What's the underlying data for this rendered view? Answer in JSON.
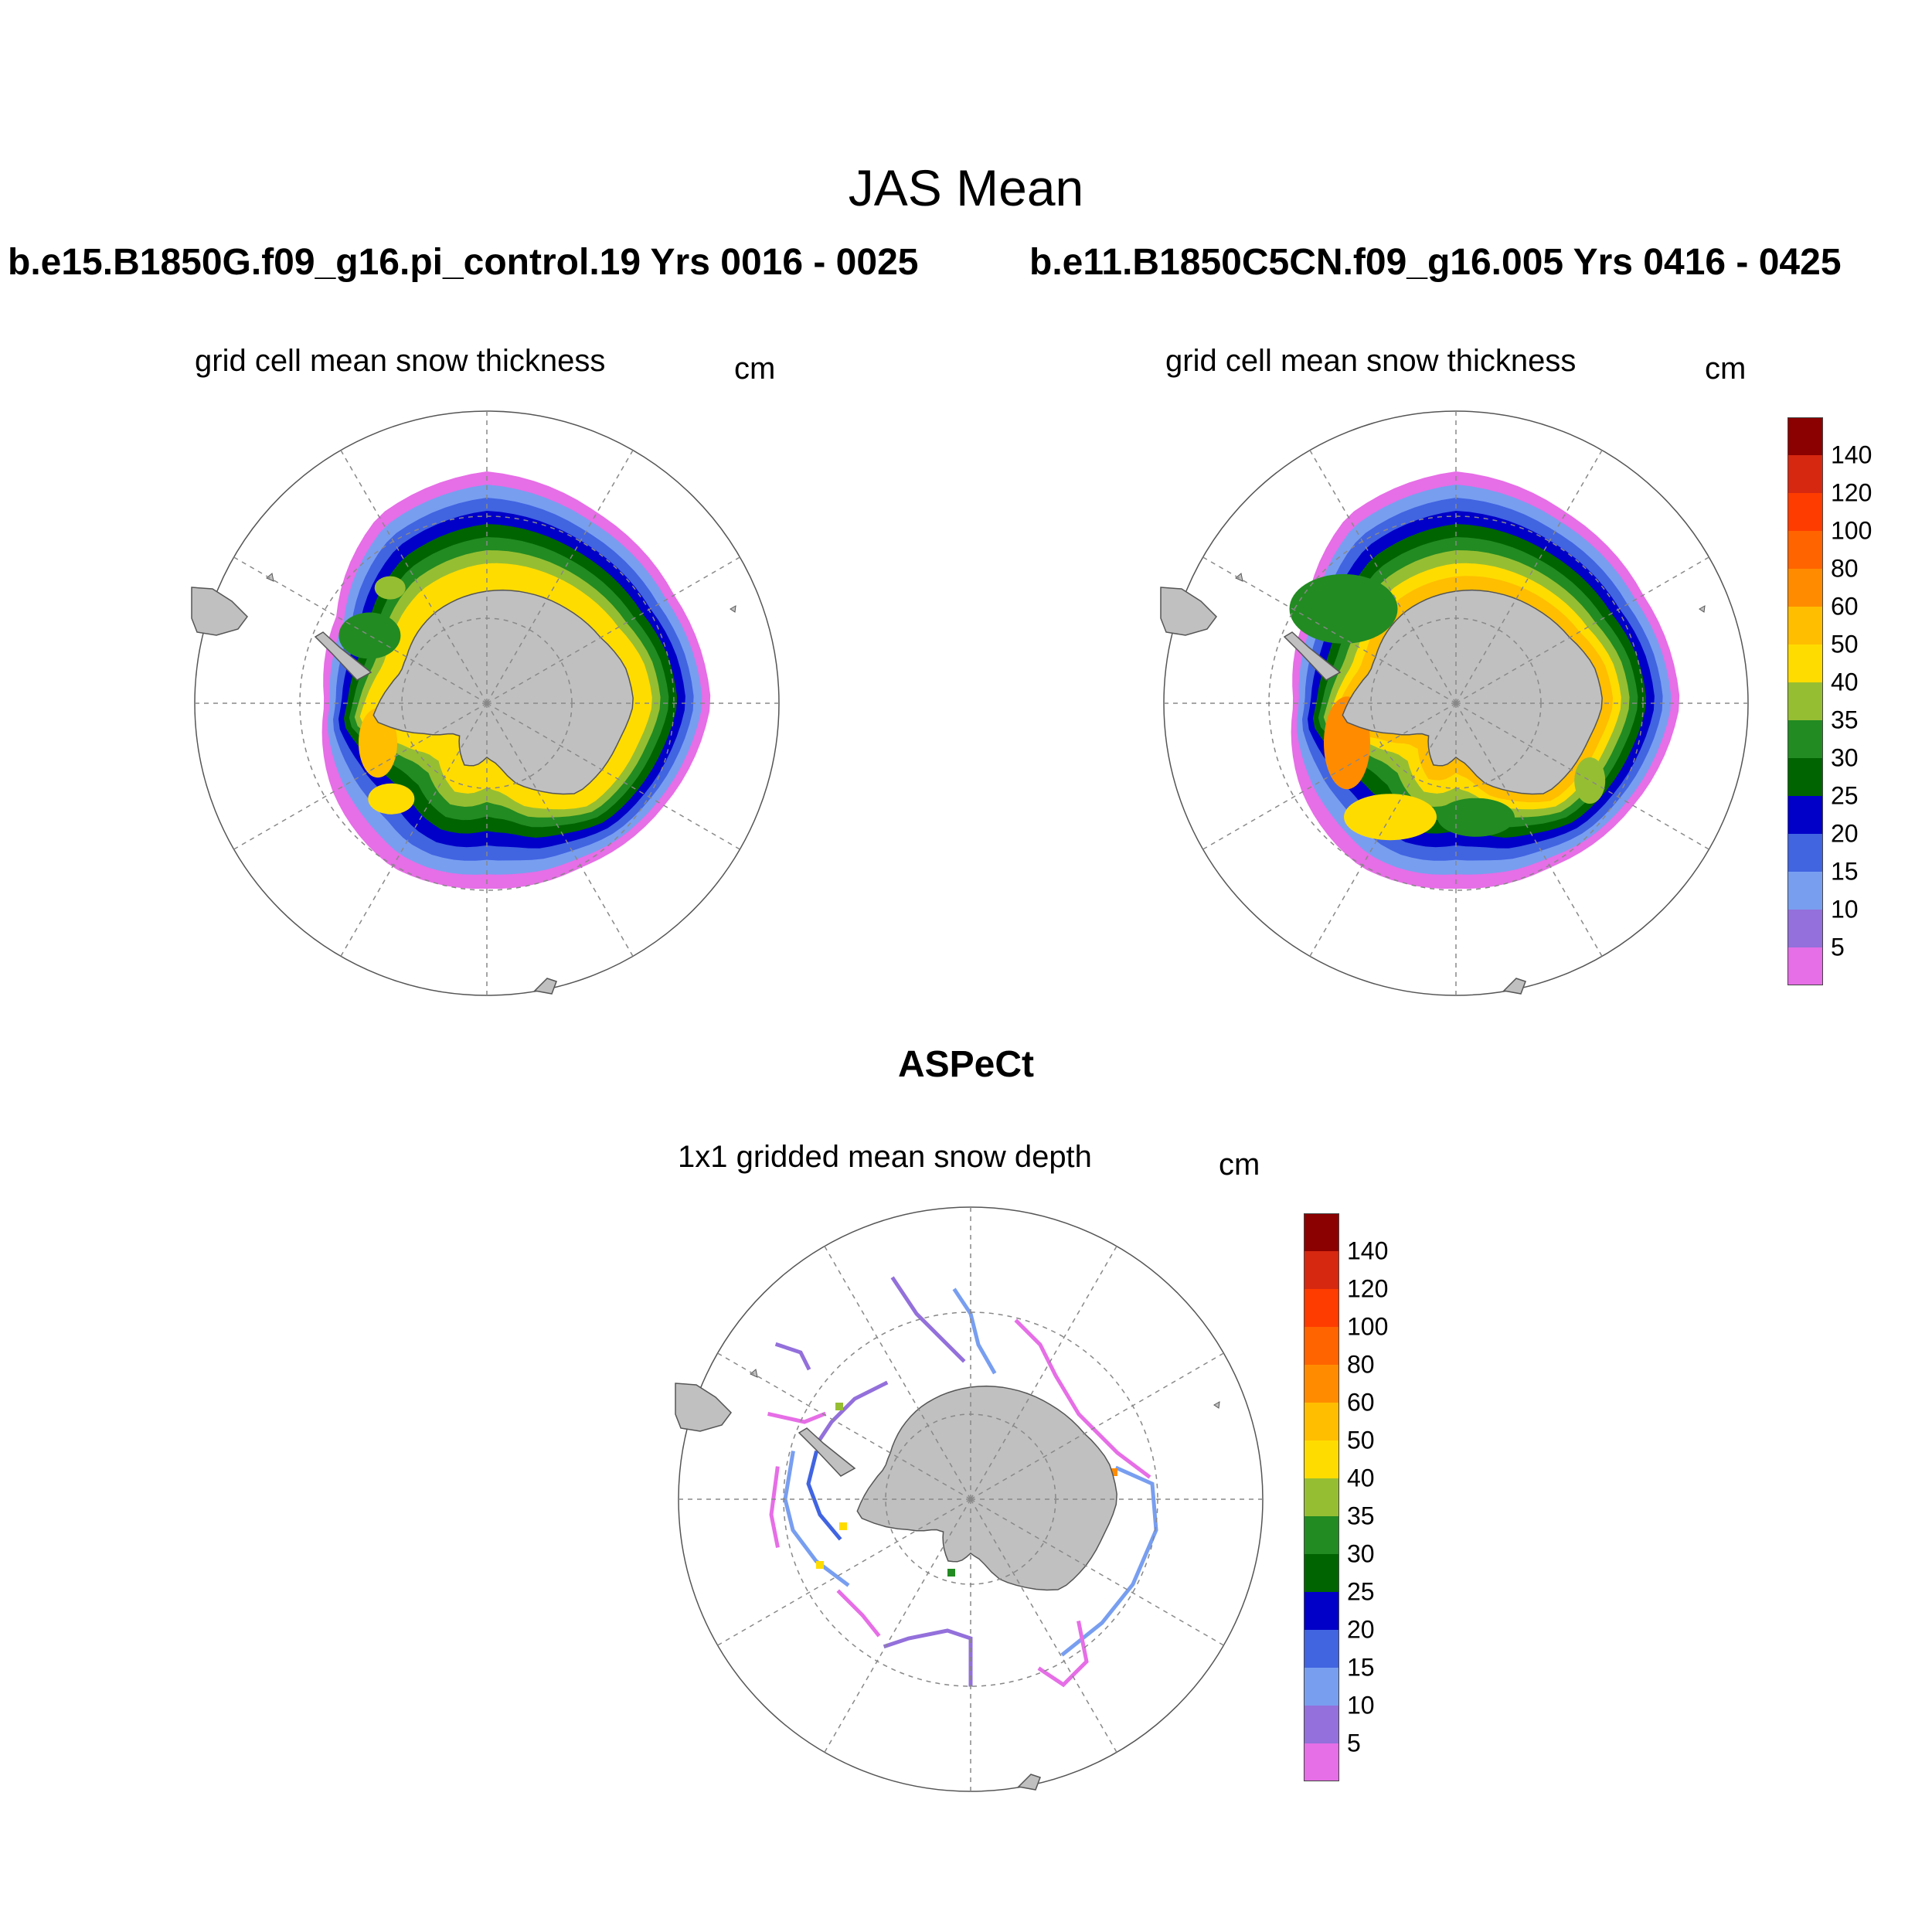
{
  "figure": {
    "title": "JAS Mean",
    "observation_title": "ASPeCt"
  },
  "panels": [
    {
      "case": "b.e15.B1850G.f09_g16.pi_control.19  Yrs 0016 - 0025",
      "subtitle": "grid cell mean snow thickness",
      "units": "cm"
    },
    {
      "case": "b.e11.B1850C5CN.f09_g16.005  Yrs 0416 - 0425",
      "subtitle": "grid cell mean snow thickness",
      "units": "cm"
    },
    {
      "case": "",
      "subtitle": "1x1 gridded mean snow depth",
      "units": "cm"
    }
  ],
  "colorbar": {
    "levels": [
      "140",
      "120",
      "100",
      "80",
      "60",
      "50",
      "40",
      "35",
      "30",
      "25",
      "20",
      "15",
      "10",
      "5"
    ],
    "colors": [
      "#8b0000",
      "#d62810",
      "#ff3c00",
      "#ff6400",
      "#ff8c00",
      "#ffbe00",
      "#ffdc00",
      "#96be32",
      "#228b22",
      "#006400",
      "#0000c8",
      "#4164e1",
      "#789ef0",
      "#9370db",
      "#e66ee6"
    ]
  },
  "map_colors": {
    "land": "#c0c0c0",
    "land_edge": "#555555",
    "grid": "#888888"
  }
}
